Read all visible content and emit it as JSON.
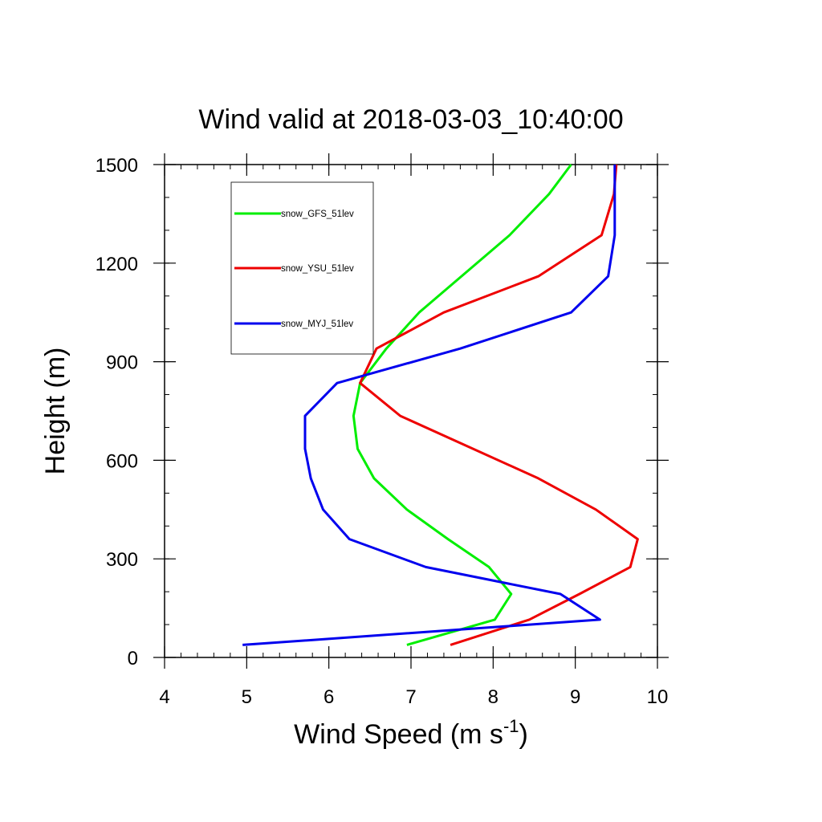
{
  "chart_data": {
    "type": "line",
    "title": "Wind valid at 2018-03-03_10:40:00",
    "xlabel": "Wind Speed (m s",
    "xlabel_superscript": "-1",
    "xlabel_suffix": ")",
    "ylabel": "Height (m)",
    "xlim": [
      4,
      10
    ],
    "ylim": [
      0,
      1500
    ],
    "x_ticks": [
      4,
      5,
      6,
      7,
      8,
      9,
      10
    ],
    "y_ticks": [
      0,
      300,
      600,
      900,
      1200,
      1500
    ],
    "x_tick_labels": [
      "4",
      "5",
      "6",
      "7",
      "8",
      "9",
      "10"
    ],
    "y_tick_labels": [
      "0",
      "300",
      "600",
      "900",
      "1200",
      "1500"
    ],
    "grid": false,
    "legend_position": "top-left",
    "series": [
      {
        "name": "snow_GFS_51lev",
        "color": "#00ee00",
        "points": [
          [
            6.95,
            38
          ],
          [
            8.02,
            115
          ],
          [
            8.22,
            193
          ],
          [
            7.95,
            275
          ],
          [
            7.45,
            360
          ],
          [
            6.95,
            450
          ],
          [
            6.55,
            545
          ],
          [
            6.35,
            635
          ],
          [
            6.3,
            735
          ],
          [
            6.38,
            835
          ],
          [
            6.7,
            940
          ],
          [
            7.1,
            1050
          ],
          [
            8.2,
            1285
          ],
          [
            8.68,
            1410
          ],
          [
            8.95,
            1500
          ]
        ]
      },
      {
        "name": "snow_YSU_51lev",
        "color": "#ee0000",
        "points": [
          [
            7.48,
            38
          ],
          [
            8.44,
            115
          ],
          [
            9.05,
            193
          ],
          [
            9.67,
            275
          ],
          [
            9.76,
            360
          ],
          [
            9.25,
            450
          ],
          [
            8.55,
            545
          ],
          [
            6.87,
            735
          ],
          [
            6.38,
            835
          ],
          [
            6.58,
            940
          ],
          [
            7.4,
            1050
          ],
          [
            8.55,
            1160
          ],
          [
            9.32,
            1285
          ],
          [
            9.47,
            1410
          ],
          [
            9.5,
            1500
          ]
        ]
      },
      {
        "name": "snow_MYJ_51lev",
        "color": "#0000ee",
        "points": [
          [
            4.95,
            38
          ],
          [
            9.3,
            115
          ],
          [
            8.82,
            193
          ],
          [
            7.18,
            275
          ],
          [
            6.25,
            360
          ],
          [
            5.93,
            450
          ],
          [
            5.78,
            545
          ],
          [
            5.71,
            635
          ],
          [
            5.71,
            735
          ],
          [
            6.1,
            835
          ],
          [
            7.6,
            940
          ],
          [
            8.95,
            1050
          ],
          [
            9.4,
            1160
          ],
          [
            9.48,
            1285
          ],
          [
            9.48,
            1410
          ],
          [
            9.48,
            1500
          ]
        ]
      }
    ]
  }
}
